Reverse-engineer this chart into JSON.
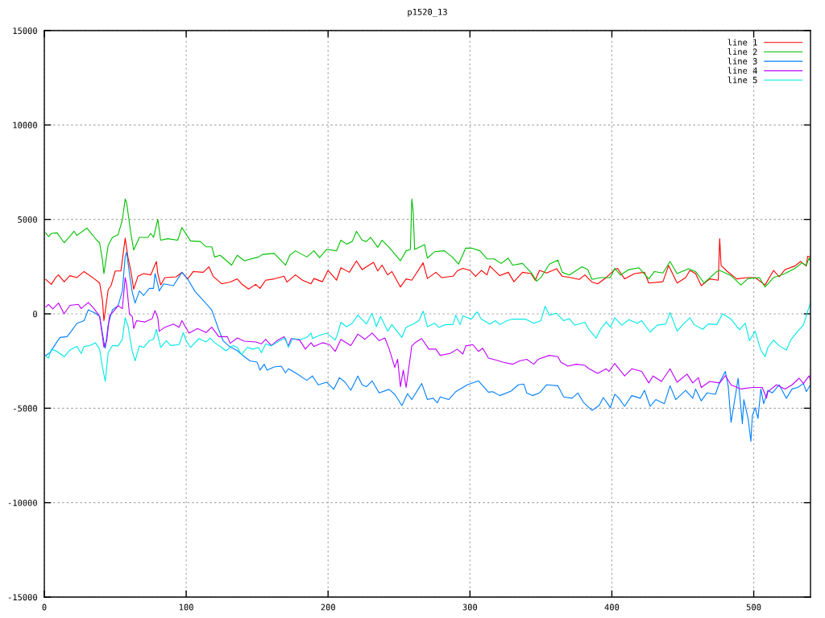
{
  "chart_data": {
    "type": "line",
    "title": "p1520_13",
    "xlim": [
      0,
      540
    ],
    "ylim": [
      -15000,
      15000
    ],
    "xticks": [
      0,
      100,
      200,
      300,
      400,
      500
    ],
    "yticks": [
      -15000,
      -10000,
      -5000,
      0,
      5000,
      10000,
      15000
    ],
    "grid": true,
    "legend": "top right",
    "series": [
      {
        "name": "line 1",
        "color": "#ff0000",
        "x": [
          1,
          5,
          8,
          10,
          14,
          18,
          23,
          28,
          35,
          39,
          41,
          42,
          43,
          45,
          47,
          50,
          54,
          57,
          59,
          61,
          63,
          66,
          70,
          75,
          79,
          80,
          82,
          85,
          93,
          97,
          101,
          105,
          112,
          116,
          119,
          125,
          131,
          136,
          139,
          144,
          149,
          152,
          156,
          162,
          169,
          171,
          177,
          182,
          188,
          190,
          196,
          200,
          206,
          209,
          215,
          220,
          224,
          232,
          235,
          238,
          242,
          245,
          251,
          255,
          259,
          267,
          270,
          276,
          280,
          288,
          291,
          295,
          300,
          304,
          308,
          312,
          314,
          321,
          327,
          331,
          337,
          343,
          346,
          349,
          354,
          361,
          365,
          371,
          377,
          381,
          386,
          390,
          396,
          402,
          404,
          409,
          416,
          423,
          426,
          436,
          440,
          446,
          452,
          455,
          459,
          463,
          469,
          475,
          476,
          477,
          481,
          488,
          495,
          501,
          508,
          514,
          518,
          522,
          529,
          533,
          537,
          538,
          540
        ],
        "values": [
          1820,
          1560,
          1920,
          2060,
          1700,
          2020,
          1920,
          2240,
          1870,
          1630,
          710,
          -360,
          140,
          1280,
          1490,
          2270,
          2270,
          4000,
          2980,
          2270,
          1310,
          1990,
          2130,
          2060,
          2770,
          2130,
          1530,
          1920,
          1960,
          2200,
          1850,
          2240,
          2200,
          2490,
          1990,
          1590,
          1680,
          1850,
          1590,
          1310,
          1560,
          1350,
          1780,
          1850,
          1990,
          1680,
          2060,
          1780,
          1590,
          1870,
          1700,
          2300,
          1780,
          2440,
          2200,
          2800,
          2340,
          2730,
          2270,
          2580,
          2060,
          2240,
          1420,
          1850,
          1780,
          2700,
          1870,
          2200,
          1920,
          1990,
          2270,
          2410,
          2300,
          1990,
          2300,
          2060,
          2530,
          2020,
          2200,
          1700,
          2200,
          2130,
          1780,
          2300,
          2160,
          2390,
          1990,
          1920,
          1820,
          2060,
          1680,
          1590,
          1920,
          2340,
          2410,
          1850,
          2130,
          2200,
          1630,
          1700,
          2560,
          1630,
          1920,
          2300,
          2130,
          1490,
          1850,
          1780,
          3980,
          2560,
          2270,
          1850,
          1920,
          1920,
          1530,
          2300,
          1960,
          2340,
          2530,
          2770,
          2530,
          3050,
          3010
        ]
      },
      {
        "name": "line 2",
        "color": "#00c000",
        "x": [
          1,
          3,
          5,
          9,
          14,
          19,
          21,
          23,
          30,
          37,
          39,
          41,
          42,
          45,
          48,
          52,
          55,
          57,
          58,
          61,
          63,
          67,
          73,
          75,
          77,
          80,
          82,
          87,
          94,
          97,
          103,
          110,
          114,
          118,
          120,
          124,
          132,
          136,
          141,
          151,
          154,
          162,
          170,
          173,
          177,
          185,
          190,
          194,
          199,
          206,
          209,
          213,
          217,
          220,
          224,
          227,
          230,
          235,
          238,
          243,
          251,
          255,
          258,
          259,
          260,
          261,
          268,
          270,
          275,
          282,
          288,
          292,
          297,
          301,
          307,
          312,
          317,
          322,
          327,
          330,
          337,
          343,
          347,
          350,
          356,
          362,
          365,
          370,
          379,
          383,
          386,
          392,
          399,
          402,
          406,
          412,
          419,
          426,
          430,
          436,
          441,
          446,
          454,
          459,
          465,
          474,
          476,
          484,
          491,
          496,
          504,
          508,
          514,
          522,
          529,
          534,
          537,
          539,
          540
        ],
        "values": [
          4290,
          4090,
          4260,
          4290,
          3760,
          4190,
          4370,
          4150,
          4540,
          3900,
          3760,
          2840,
          2130,
          3620,
          4050,
          4190,
          4970,
          6080,
          5890,
          4260,
          3380,
          4050,
          4050,
          4260,
          4050,
          5000,
          3900,
          3980,
          3900,
          4570,
          3860,
          3830,
          3550,
          3550,
          3010,
          3100,
          2580,
          3100,
          2810,
          3010,
          3150,
          3200,
          2580,
          3100,
          3340,
          3010,
          3340,
          2980,
          3410,
          3340,
          3900,
          3690,
          3830,
          4370,
          3900,
          3830,
          4050,
          3520,
          3900,
          3520,
          2810,
          3340,
          3410,
          6080,
          5400,
          3410,
          3660,
          2950,
          3290,
          3340,
          2980,
          2630,
          3480,
          3480,
          3340,
          2910,
          2910,
          2670,
          2950,
          2580,
          2670,
          2200,
          1730,
          1920,
          2630,
          2840,
          2200,
          2060,
          2490,
          2340,
          1820,
          1920,
          1920,
          2410,
          2060,
          2340,
          2440,
          1850,
          2240,
          2160,
          2770,
          2130,
          2390,
          2240,
          1630,
          2240,
          2300,
          2020,
          1530,
          1870,
          1920,
          1420,
          1920,
          2130,
          2410,
          2700,
          2560,
          2950,
          2810
        ]
      },
      {
        "name": "line 3",
        "color": "#0080ff",
        "x": [
          1,
          4,
          7,
          11,
          16,
          19,
          23,
          28,
          31,
          36,
          39,
          42,
          43,
          45,
          48,
          52,
          55,
          57,
          58,
          60,
          62,
          64,
          67,
          70,
          74,
          77,
          78,
          80,
          81,
          84,
          91,
          97,
          101,
          106,
          112,
          118,
          123,
          126,
          130,
          136,
          141,
          145,
          150,
          152,
          155,
          157,
          162,
          167,
          170,
          172,
          177,
          185,
          189,
          193,
          199,
          204,
          208,
          212,
          216,
          221,
          224,
          227,
          231,
          236,
          243,
          247,
          252,
          256,
          259,
          266,
          270,
          274,
          277,
          279,
          285,
          290,
          295,
          298,
          306,
          313,
          316,
          321,
          329,
          334,
          338,
          340,
          344,
          349,
          354,
          362,
          366,
          372,
          376,
          380,
          386,
          391,
          394,
          399,
          402,
          405,
          409,
          414,
          420,
          423,
          427,
          431,
          437,
          441,
          445,
          452,
          457,
          459,
          463,
          467,
          473,
          476,
          480,
          482,
          484,
          486,
          489,
          492,
          493,
          496,
          498,
          499,
          501,
          503,
          505,
          507,
          510,
          513,
          518,
          523,
          527,
          531,
          535,
          537,
          540
        ],
        "values": [
          -2200,
          -2060,
          -1700,
          -1250,
          -1210,
          -920,
          -500,
          -360,
          210,
          30,
          -140,
          -1490,
          -1820,
          -570,
          210,
          430,
          1210,
          3050,
          3270,
          2130,
          1140,
          570,
          1210,
          970,
          1350,
          1350,
          2130,
          1560,
          1210,
          1590,
          1490,
          2200,
          1850,
          1210,
          710,
          210,
          -850,
          -1420,
          -1700,
          -1950,
          -2270,
          -2490,
          -2560,
          -2980,
          -2670,
          -2980,
          -2810,
          -2770,
          -3120,
          -2910,
          -3120,
          -3520,
          -3290,
          -3760,
          -3620,
          -4000,
          -3380,
          -3620,
          -4050,
          -3290,
          -3760,
          -3860,
          -3550,
          -4190,
          -4000,
          -4260,
          -4860,
          -4230,
          -4540,
          -3690,
          -4540,
          -4470,
          -4710,
          -4400,
          -4540,
          -4120,
          -3900,
          -3760,
          -3550,
          -4150,
          -4120,
          -4330,
          -4090,
          -3760,
          -3720,
          -4190,
          -4330,
          -4190,
          -3760,
          -3810,
          -4400,
          -4470,
          -4190,
          -4690,
          -5110,
          -4860,
          -4430,
          -4970,
          -4260,
          -4470,
          -4900,
          -4330,
          -4470,
          -4050,
          -4900,
          -4540,
          -4760,
          -3810,
          -4540,
          -4050,
          -4470,
          -3980,
          -4610,
          -4190,
          -4260,
          -3620,
          -3050,
          -3830,
          -5750,
          -4830,
          -3410,
          -5820,
          -4540,
          -5540,
          -6750,
          -5400,
          -4970,
          -5540,
          -3980,
          -4760,
          -4050,
          -4190,
          -3760,
          -4470,
          -3980,
          -3900,
          -3690,
          -4120,
          -3760
        ]
      },
      {
        "name": "line 4",
        "color": "#c000ff",
        "x": [
          1,
          3,
          6,
          10,
          14,
          18,
          24,
          26,
          31,
          35,
          39,
          41,
          42,
          44,
          46,
          49,
          52,
          55,
          57,
          58,
          60,
          62,
          63,
          65,
          71,
          76,
          78,
          80,
          81,
          85,
          91,
          95,
          97,
          102,
          108,
          114,
          118,
          123,
          129,
          131,
          136,
          141,
          149,
          153,
          156,
          160,
          164,
          169,
          172,
          174,
          180,
          184,
          188,
          190,
          196,
          201,
          205,
          209,
          216,
          221,
          226,
          231,
          236,
          240,
          243,
          247,
          249,
          251,
          253,
          255,
          259,
          262,
          266,
          271,
          276,
          279,
          286,
          291,
          295,
          297,
          302,
          306,
          309,
          313,
          318,
          323,
          330,
          335,
          340,
          345,
          348,
          356,
          362,
          364,
          369,
          375,
          381,
          384,
          390,
          396,
          398,
          402,
          409,
          414,
          421,
          426,
          429,
          435,
          441,
          446,
          453,
          457,
          461,
          463,
          469,
          476,
          480,
          484,
          491,
          499,
          506,
          509,
          510,
          516,
          522,
          527,
          532,
          535,
          539,
          540
        ],
        "values": [
          360,
          500,
          260,
          570,
          0,
          450,
          500,
          280,
          600,
          280,
          -140,
          -1210,
          -1780,
          -1420,
          -70,
          140,
          430,
          280,
          1920,
          1560,
          0,
          -140,
          -780,
          -360,
          -430,
          -260,
          170,
          -210,
          -920,
          -710,
          -540,
          -710,
          -360,
          -1020,
          -780,
          -990,
          -710,
          -1210,
          -1210,
          -1560,
          -1280,
          -1450,
          -1490,
          -1590,
          -1350,
          -1680,
          -1420,
          -1210,
          -1700,
          -1310,
          -1390,
          -1870,
          -1530,
          -1730,
          -1530,
          -1630,
          -1990,
          -1350,
          -1680,
          -1070,
          -1350,
          -1020,
          -1420,
          -1280,
          -1850,
          -2840,
          -2410,
          -3860,
          -2980,
          -3900,
          -1700,
          -1490,
          -1310,
          -1870,
          -1870,
          -2200,
          -2100,
          -1870,
          -2130,
          -1700,
          -1630,
          -1990,
          -1820,
          -2340,
          -2440,
          -2560,
          -2670,
          -2490,
          -2410,
          -2670,
          -2410,
          -2200,
          -2270,
          -2560,
          -2770,
          -2670,
          -2730,
          -2910,
          -3150,
          -2910,
          -3050,
          -2630,
          -3290,
          -2910,
          -3050,
          -3660,
          -3290,
          -3580,
          -2910,
          -3620,
          -3190,
          -3660,
          -3380,
          -3900,
          -3580,
          -3660,
          -3270,
          -3760,
          -3980,
          -3900,
          -3900,
          -4470,
          -4120,
          -3760,
          -3980,
          -3760,
          -3410,
          -3690,
          -3290,
          -3480
        ]
      },
      {
        "name": "line 5",
        "color": "#00e8e8",
        "x": [
          1,
          3,
          5,
          9,
          14,
          18,
          23,
          26,
          28,
          32,
          36,
          39,
          41,
          43,
          45,
          48,
          52,
          55,
          57,
          59,
          62,
          64,
          67,
          70,
          74,
          77,
          79,
          82,
          86,
          89,
          95,
          98,
          100,
          103,
          109,
          114,
          117,
          120,
          125,
          128,
          133,
          136,
          139,
          143,
          147,
          151,
          153,
          156,
          160,
          166,
          170,
          172,
          175,
          181,
          185,
          188,
          189,
          194,
          199,
          205,
          207,
          209,
          213,
          217,
          221,
          227,
          231,
          234,
          237,
          242,
          245,
          252,
          255,
          260,
          264,
          267,
          270,
          275,
          278,
          283,
          288,
          290,
          293,
          295,
          301,
          305,
          308,
          314,
          318,
          321,
          326,
          330,
          339,
          345,
          350,
          353,
          356,
          361,
          366,
          370,
          374,
          381,
          384,
          389,
          392,
          396,
          399,
          402,
          407,
          412,
          418,
          421,
          427,
          432,
          438,
          441,
          446,
          450,
          455,
          458,
          464,
          468,
          474,
          478,
          484,
          490,
          494,
          497,
          501,
          505,
          508,
          510,
          514,
          518,
          523,
          526,
          531,
          535,
          538,
          540
        ],
        "values": [
          -2240,
          -2340,
          -1870,
          -1990,
          -2270,
          -1920,
          -1730,
          -2100,
          -1730,
          -1680,
          -1530,
          -1870,
          -2840,
          -3580,
          -2060,
          -1680,
          -1700,
          -1350,
          -210,
          -640,
          -1990,
          -2490,
          -1700,
          -1780,
          -1420,
          -1350,
          -820,
          -1780,
          -1420,
          -1680,
          -1630,
          -990,
          -1420,
          -1780,
          -1310,
          -1490,
          -1280,
          -1530,
          -1780,
          -1960,
          -1680,
          -1780,
          -2160,
          -1780,
          -1870,
          -1780,
          -2060,
          -1590,
          -1700,
          -1420,
          -1280,
          -1780,
          -1310,
          -1350,
          -1250,
          -1020,
          -1310,
          -1140,
          -1020,
          -1390,
          -990,
          -450,
          -680,
          -500,
          -70,
          -540,
          30,
          -680,
          -140,
          -920,
          -570,
          -1250,
          -710,
          -540,
          -360,
          140,
          -680,
          -500,
          -710,
          -570,
          -570,
          -70,
          -570,
          -110,
          -280,
          110,
          -280,
          -540,
          -360,
          -570,
          -360,
          -280,
          -280,
          -500,
          -360,
          400,
          -70,
          30,
          -360,
          -260,
          -600,
          -450,
          -850,
          -1280,
          -820,
          -430,
          -710,
          -210,
          -600,
          -310,
          -500,
          -360,
          -970,
          -600,
          -540,
          70,
          -920,
          -570,
          -210,
          -570,
          -820,
          -540,
          -570,
          0,
          -280,
          -850,
          -500,
          -1420,
          -920,
          -1920,
          -2270,
          -1780,
          -1390,
          -1700,
          -1920,
          -1390,
          -920,
          -600,
          140,
          570
        ]
      }
    ]
  }
}
